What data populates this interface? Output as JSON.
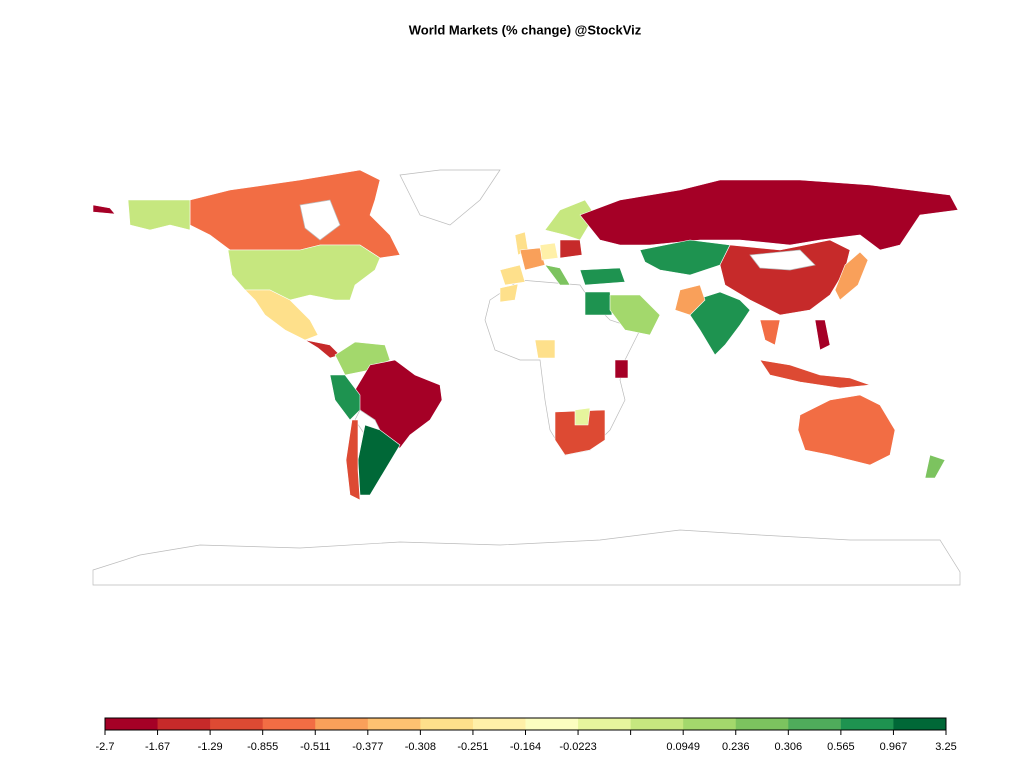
{
  "title": "World Markets (% change) @StockViz",
  "legend": {
    "breaks": [
      -2.7,
      -1.67,
      -1.29,
      -0.855,
      -0.511,
      -0.377,
      -0.308,
      -0.251,
      -0.164,
      -0.0223,
      null,
      0.0949,
      0.236,
      0.306,
      0.565,
      0.967,
      3.25
    ],
    "colors": [
      "#a50026",
      "#c62a2a",
      "#dd4a33",
      "#f26d44",
      "#f9a05a",
      "#fdc171",
      "#fee08b",
      "#fff0a8",
      "#fcfec0",
      "#e6f59d",
      "#c6e77f",
      "#a3d86c",
      "#7cc35f",
      "#4fac5b",
      "#1e9350",
      "#006837"
    ]
  }
}
